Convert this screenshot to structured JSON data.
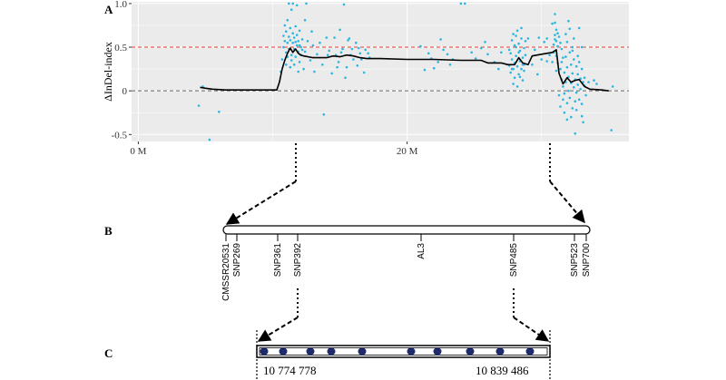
{
  "figure": {
    "panel_labels": {
      "a": "A",
      "b": "B",
      "c": "C"
    }
  },
  "chart_data": {
    "type": "scatter",
    "title": "",
    "xlabel": "",
    "ylabel": "ΔInDel-index",
    "xlim": [
      -0.5,
      36.5
    ],
    "ylim": [
      -0.58,
      1.02
    ],
    "x_ticks": [
      {
        "value": 0,
        "label": "0 M"
      },
      {
        "value": 20,
        "label": "20 M"
      }
    ],
    "y_ticks": [
      {
        "value": -0.5,
        "label": "-0.5"
      },
      {
        "value": 0,
        "label": "0"
      },
      {
        "value": 0.5,
        "label": "0.5"
      },
      {
        "value": 1,
        "label": "1.0"
      }
    ],
    "grid": true,
    "background": "#ebebeb",
    "grid_color": "#ffffff",
    "point_color": "#29b6e0",
    "line_color": "#000000",
    "threshold_lines": [
      {
        "y": 0.5,
        "color": "#e8403a",
        "style": "dashed"
      },
      {
        "y": 0,
        "color": "#666666",
        "style": "dashed"
      }
    ],
    "series": [
      {
        "kind": "line",
        "points": [
          [
            4.6,
            0.04
          ],
          [
            5.0,
            0.03
          ],
          [
            5.5,
            0.02
          ],
          [
            6.5,
            0.01
          ],
          [
            8.0,
            0.01
          ],
          [
            9.5,
            0.01
          ],
          [
            10.3,
            0.01
          ],
          [
            10.5,
            0.1
          ],
          [
            10.7,
            0.25
          ],
          [
            10.9,
            0.35
          ],
          [
            11.1,
            0.43
          ],
          [
            11.3,
            0.49
          ],
          [
            11.5,
            0.44
          ],
          [
            11.7,
            0.48
          ],
          [
            11.9,
            0.43
          ],
          [
            12.1,
            0.41
          ],
          [
            12.3,
            0.4
          ],
          [
            13.0,
            0.38
          ],
          [
            14.0,
            0.38
          ],
          [
            14.5,
            0.4
          ],
          [
            15.0,
            0.39
          ],
          [
            15.5,
            0.41
          ],
          [
            16.0,
            0.4
          ],
          [
            16.5,
            0.38
          ],
          [
            17.0,
            0.37
          ],
          [
            18.0,
            0.37
          ],
          [
            20.0,
            0.36
          ],
          [
            22.0,
            0.36
          ],
          [
            24.0,
            0.35
          ],
          [
            25.5,
            0.35
          ],
          [
            26.0,
            0.32
          ],
          [
            27.0,
            0.32
          ],
          [
            27.5,
            0.3
          ],
          [
            28.0,
            0.3
          ],
          [
            28.3,
            0.38
          ],
          [
            28.6,
            0.32
          ],
          [
            29.0,
            0.3
          ],
          [
            29.3,
            0.4
          ],
          [
            30.0,
            0.42
          ],
          [
            30.8,
            0.44
          ],
          [
            31.1,
            0.47
          ],
          [
            31.3,
            0.2
          ],
          [
            31.6,
            0.08
          ],
          [
            31.9,
            0.15
          ],
          [
            32.2,
            0.1
          ],
          [
            32.5,
            0.12
          ],
          [
            32.8,
            0.13
          ],
          [
            33.2,
            0.05
          ],
          [
            33.6,
            0.02
          ],
          [
            34.5,
            0.01
          ],
          [
            35.0,
            0.0
          ]
        ]
      },
      {
        "kind": "points",
        "points": [
          [
            4.5,
            -0.17
          ],
          [
            5.3,
            -0.56
          ],
          [
            6.0,
            -0.24
          ],
          [
            4.8,
            0.05
          ],
          [
            10.6,
            0.22
          ],
          [
            10.7,
            0.36
          ],
          [
            10.8,
            0.5
          ],
          [
            10.8,
            0.63
          ],
          [
            10.9,
            0.75
          ],
          [
            10.9,
            0.57
          ],
          [
            11.0,
            0.44
          ],
          [
            11.0,
            0.68
          ],
          [
            11.1,
            0.55
          ],
          [
            11.1,
            0.81
          ],
          [
            11.2,
            0.48
          ],
          [
            11.2,
            0.62
          ],
          [
            11.3,
            0.58
          ],
          [
            11.3,
            0.72
          ],
          [
            11.4,
            0.41
          ],
          [
            11.4,
            0.93
          ],
          [
            11.5,
            0.55
          ],
          [
            11.5,
            0.66
          ],
          [
            11.6,
            0.48
          ],
          [
            11.6,
            0.61
          ],
          [
            11.7,
            0.39
          ],
          [
            11.7,
            0.74
          ],
          [
            11.8,
            0.52
          ],
          [
            11.8,
            0.64
          ],
          [
            11.9,
            0.45
          ],
          [
            11.9,
            0.57
          ],
          [
            12.0,
            0.33
          ],
          [
            12.0,
            0.69
          ],
          [
            12.1,
            0.5
          ],
          [
            12.1,
            0.41
          ],
          [
            12.2,
            0.59
          ],
          [
            12.2,
            0.47
          ],
          [
            11.0,
            0.3
          ],
          [
            11.3,
            0.27
          ],
          [
            11.6,
            0.3
          ],
          [
            11.9,
            0.22
          ],
          [
            12.3,
            0.25
          ],
          [
            12.4,
            0.45
          ],
          [
            11.4,
            0.35
          ],
          [
            12.0,
            0.52
          ],
          [
            11.7,
            0.56
          ],
          [
            11.1,
            0.39
          ],
          [
            11.2,
            1.0
          ],
          [
            12.5,
            1.0
          ],
          [
            12.4,
            0.81
          ],
          [
            12.6,
            0.57
          ],
          [
            11.5,
            1.0
          ],
          [
            11.8,
            0.98
          ],
          [
            13.0,
            0.52
          ],
          [
            13.5,
            0.55
          ],
          [
            14.2,
            0.46
          ],
          [
            14.6,
            0.61
          ],
          [
            14.9,
            0.33
          ],
          [
            15.2,
            0.48
          ],
          [
            15.5,
            0.27
          ],
          [
            15.8,
            0.41
          ],
          [
            16.2,
            0.55
          ],
          [
            16.5,
            0.43
          ],
          [
            16.8,
            0.21
          ],
          [
            17.1,
            0.43
          ],
          [
            13.7,
            0.3
          ],
          [
            14.0,
            0.61
          ],
          [
            15.0,
            0.7
          ],
          [
            15.6,
            0.58
          ],
          [
            16.0,
            0.36
          ],
          [
            13.3,
            0.42
          ],
          [
            14.4,
            0.2
          ],
          [
            15.4,
            0.15
          ],
          [
            16.6,
            0.36
          ],
          [
            12.8,
            0.35
          ],
          [
            14.8,
            0.27
          ],
          [
            16.4,
            0.49
          ],
          [
            15.9,
            0.48
          ],
          [
            14.1,
            0.41
          ],
          [
            15.1,
            0.44
          ],
          [
            16.9,
            0.47
          ],
          [
            13.1,
            0.22
          ],
          [
            15.7,
            0.6
          ],
          [
            14.7,
            0.41
          ],
          [
            16.3,
            0.29
          ],
          [
            13.8,
            -0.27
          ],
          [
            15.3,
            0.99
          ],
          [
            17.2,
            0.38
          ],
          [
            12.9,
            0.68
          ],
          [
            21.0,
            0.51
          ],
          [
            21.3,
            0.24
          ],
          [
            21.6,
            0.43
          ],
          [
            22.0,
            0.26
          ],
          [
            22.3,
            0.33
          ],
          [
            22.7,
            0.47
          ],
          [
            23.0,
            0.42
          ],
          [
            23.4,
            0.36
          ],
          [
            21.8,
            0.37
          ],
          [
            22.5,
            0.59
          ],
          [
            23.2,
            0.3
          ],
          [
            24.0,
            1.0
          ],
          [
            24.3,
            1.0
          ],
          [
            25.1,
            0.37
          ],
          [
            25.5,
            0.49
          ],
          [
            26.0,
            0.42
          ],
          [
            26.5,
            0.33
          ],
          [
            27.0,
            0.44
          ],
          [
            26.8,
            0.25
          ],
          [
            25.8,
            0.56
          ],
          [
            24.8,
            0.44
          ],
          [
            27.6,
            0.29
          ],
          [
            27.7,
            0.43
          ],
          [
            27.7,
            0.21
          ],
          [
            27.8,
            0.58
          ],
          [
            27.8,
            0.36
          ],
          [
            27.9,
            0.25
          ],
          [
            27.9,
            0.65
          ],
          [
            28.0,
            0.32
          ],
          [
            28.0,
            0.15
          ],
          [
            28.1,
            0.5
          ],
          [
            28.1,
            0.4
          ],
          [
            28.2,
            0.28
          ],
          [
            28.2,
            0.69
          ],
          [
            28.3,
            0.19
          ],
          [
            28.3,
            0.54
          ],
          [
            28.4,
            0.34
          ],
          [
            28.4,
            0.46
          ],
          [
            28.5,
            0.25
          ],
          [
            28.5,
            0.6
          ],
          [
            28.6,
            0.38
          ],
          [
            28.6,
            0.12
          ],
          [
            28.7,
            0.49
          ],
          [
            28.7,
            0.3
          ],
          [
            28.8,
            0.41
          ],
          [
            28.8,
            0.57
          ],
          [
            27.6,
            0.47
          ],
          [
            27.9,
            0.08
          ],
          [
            28.2,
            0.05
          ],
          [
            28.5,
            0.72
          ],
          [
            28.1,
            0.63
          ],
          [
            28.3,
            0.44
          ],
          [
            27.8,
            0.25
          ],
          [
            28.6,
            0.3
          ],
          [
            28.0,
            0.52
          ],
          [
            28.4,
            0.16
          ],
          [
            28.7,
            0.23
          ],
          [
            29.3,
            0.3
          ],
          [
            29.5,
            0.47
          ],
          [
            29.8,
            0.61
          ],
          [
            30.0,
            0.36
          ],
          [
            30.2,
            0.56
          ],
          [
            30.4,
            0.34
          ],
          [
            29.7,
            0.19
          ],
          [
            30.6,
            0.41
          ],
          [
            29.0,
            0.6
          ],
          [
            30.8,
            0.77
          ],
          [
            30.9,
            0.53
          ],
          [
            31.0,
            0.88
          ],
          [
            31.0,
            0.64
          ],
          [
            31.1,
            0.4
          ],
          [
            31.1,
            0.7
          ],
          [
            31.2,
            0.51
          ],
          [
            31.2,
            0.32
          ],
          [
            30.9,
            0.44
          ],
          [
            31.0,
            0.59
          ],
          [
            31.1,
            0.23
          ],
          [
            30.8,
            0.33
          ],
          [
            31.2,
            0.66
          ],
          [
            31.0,
            0.78
          ],
          [
            31.1,
            0.57
          ],
          [
            31.3,
            -0.05
          ],
          [
            31.4,
            0.25
          ],
          [
            31.4,
            -0.18
          ],
          [
            31.5,
            0.13
          ],
          [
            31.5,
            0.33
          ],
          [
            31.6,
            -0.1
          ],
          [
            31.6,
            0.05
          ],
          [
            31.7,
            0.21
          ],
          [
            31.7,
            -0.03
          ],
          [
            31.8,
            0.39
          ],
          [
            31.8,
            0.1
          ],
          [
            31.9,
            -0.14
          ],
          [
            31.9,
            0.27
          ],
          [
            32.0,
            0.0
          ],
          [
            32.0,
            0.16
          ],
          [
            32.1,
            0.44
          ],
          [
            32.1,
            -0.08
          ],
          [
            32.2,
            0.09
          ],
          [
            32.2,
            0.3
          ],
          [
            32.3,
            -0.2
          ],
          [
            32.3,
            0.2
          ],
          [
            32.4,
            0.04
          ],
          [
            32.4,
            0.36
          ],
          [
            32.5,
            -0.12
          ],
          [
            32.5,
            0.13
          ],
          [
            32.6,
            0.28
          ],
          [
            32.6,
            -0.02
          ],
          [
            32.7,
            0.19
          ],
          [
            32.7,
            0.07
          ],
          [
            32.8,
            -0.1
          ],
          [
            32.8,
            0.33
          ],
          [
            32.9,
            0.14
          ],
          [
            32.9,
            0.02
          ],
          [
            33.0,
            0.25
          ],
          [
            33.0,
            -0.15
          ],
          [
            33.1,
            0.1
          ],
          [
            31.5,
            0.48
          ],
          [
            31.9,
            0.56
          ],
          [
            32.3,
            0.46
          ],
          [
            32.7,
            0.4
          ],
          [
            33.0,
            0.5
          ],
          [
            31.7,
            -0.25
          ],
          [
            32.2,
            -0.3
          ],
          [
            32.6,
            -0.22
          ],
          [
            33.0,
            -0.29
          ],
          [
            31.8,
            0.65
          ],
          [
            32.4,
            0.6
          ],
          [
            32.8,
            0.72
          ],
          [
            33.2,
            0.06
          ],
          [
            33.3,
            -0.05
          ],
          [
            33.5,
            0.1
          ],
          [
            32.0,
            0.8
          ],
          [
            31.6,
            0.38
          ],
          [
            33.1,
            -0.36
          ],
          [
            32.5,
            -0.49
          ],
          [
            31.9,
            -0.33
          ],
          [
            33.2,
            0.15
          ],
          [
            30.4,
            0.6
          ],
          [
            31.3,
            0.62
          ],
          [
            32.1,
            0.71
          ],
          [
            35.2,
            -0.45
          ],
          [
            35.3,
            0.05
          ],
          [
            33.9,
            0.12
          ],
          [
            34.1,
            0.08
          ],
          [
            32.3,
            0.5
          ],
          [
            31.4,
            0.55
          ]
        ]
      }
    ]
  },
  "genetic_map": {
    "markers": [
      "CMSSR20531",
      "SNP269",
      "SNP361",
      "SNP392",
      "AL3",
      "SNP485",
      "SNP523",
      "SNP700"
    ]
  },
  "fine_map": {
    "left_position": "10 774 778",
    "right_position": "10 839 486",
    "dot_count": 10,
    "dot_color": "#1f2a6b"
  }
}
